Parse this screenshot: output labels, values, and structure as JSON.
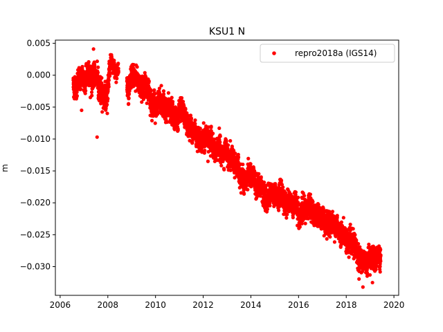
{
  "chart_data": {
    "type": "scatter",
    "title": "KSU1 N",
    "xlabel": "",
    "ylabel": "m",
    "xlim": [
      2005.8,
      2020.2
    ],
    "ylim": [
      -0.0345,
      0.0055
    ],
    "x_ticks": [
      2006,
      2008,
      2010,
      2012,
      2014,
      2016,
      2018,
      2020
    ],
    "y_ticks": [
      0.005,
      0.0,
      -0.005,
      -0.01,
      -0.015,
      -0.02,
      -0.025,
      -0.03
    ],
    "y_tick_labels": [
      "0.005",
      "0.000",
      "−0.005",
      "−0.010",
      "−0.015",
      "−0.020",
      "−0.025",
      "−0.030"
    ],
    "x_tick_labels": [
      "2006",
      "2008",
      "2010",
      "2012",
      "2014",
      "2016",
      "2018",
      "2020"
    ],
    "legend": {
      "placement": "top-right"
    },
    "grid": false,
    "series": [
      {
        "name": "repro2018a (IGS14)",
        "color": "#ff0000",
        "marker": "circle",
        "segments": [
          {
            "x_start": 2006.55,
            "x_end": 2007.6,
            "trend": [
              [
                2006.55,
                -0.0015
              ],
              [
                2007.0,
                -0.0005
              ],
              [
                2007.6,
                0.0
              ]
            ],
            "noise": 0.0011
          },
          {
            "x_start": 2007.6,
            "x_end": 2008.05,
            "trend": [
              [
                2007.6,
                -0.0035
              ],
              [
                2008.05,
                -0.0015
              ]
            ],
            "noise": 0.0012
          },
          {
            "x_start": 2008.05,
            "x_end": 2008.45,
            "trend": [
              [
                2008.05,
                0.001
              ],
              [
                2008.45,
                0.001
              ]
            ],
            "noise": 0.0008
          },
          {
            "x_start": 2008.8,
            "x_end": 2019.45,
            "trend": [
              [
                2008.8,
                -0.0015
              ],
              [
                2009.5,
                -0.0015
              ],
              [
                2010.0,
                -0.004
              ],
              [
                2011.0,
                -0.007
              ],
              [
                2012.0,
                -0.0095
              ],
              [
                2013.0,
                -0.0135
              ],
              [
                2014.0,
                -0.0165
              ],
              [
                2015.0,
                -0.019
              ],
              [
                2016.0,
                -0.021
              ],
              [
                2017.0,
                -0.022
              ],
              [
                2017.6,
                -0.0235
              ],
              [
                2018.0,
                -0.0265
              ],
              [
                2018.5,
                -0.0285
              ],
              [
                2019.0,
                -0.0285
              ],
              [
                2019.45,
                -0.028
              ]
            ],
            "noise": 0.0011
          }
        ],
        "outliers": [
          [
            2007.4,
            0.0041
          ],
          [
            2007.55,
            -0.0097
          ],
          [
            2016.2,
            -0.0185
          ],
          [
            2018.7,
            -0.0332
          ],
          [
            2006.9,
            -0.0055
          ],
          [
            2012.2,
            -0.0135
          ],
          [
            2019.1,
            -0.0325
          ]
        ]
      }
    ]
  }
}
